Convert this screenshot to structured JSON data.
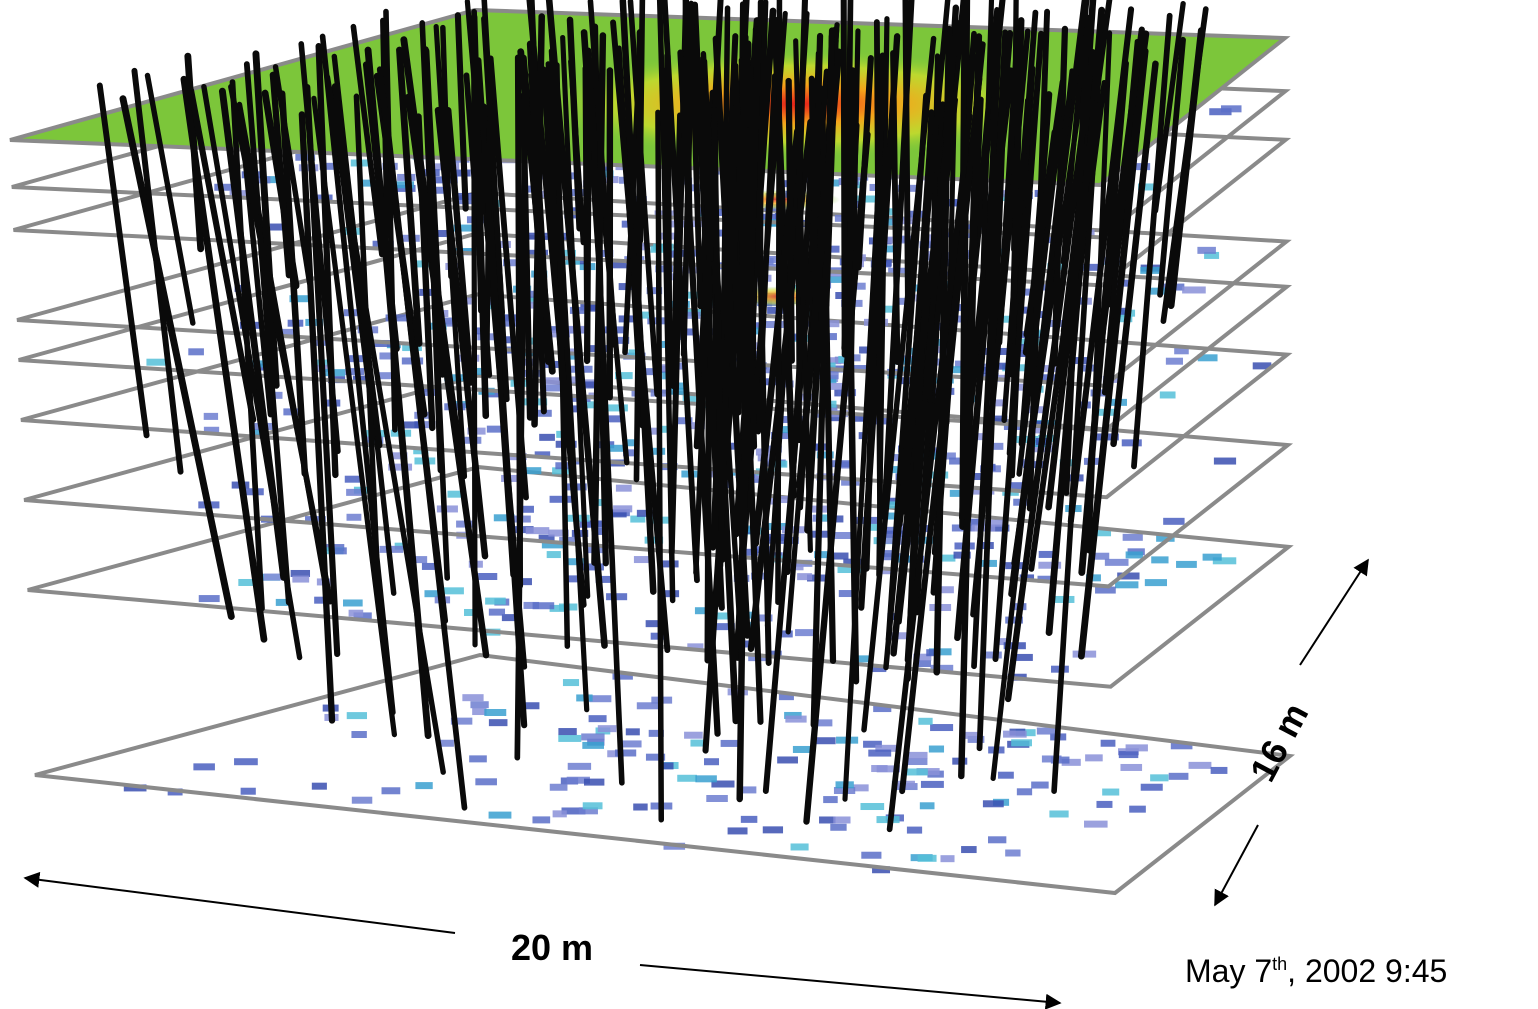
{
  "labels": {
    "width": "20 m",
    "depth": "16 m"
  },
  "timestamp": {
    "day": "May 7",
    "ordinal": "th",
    "rest": ", 2002  9:45"
  }
}
